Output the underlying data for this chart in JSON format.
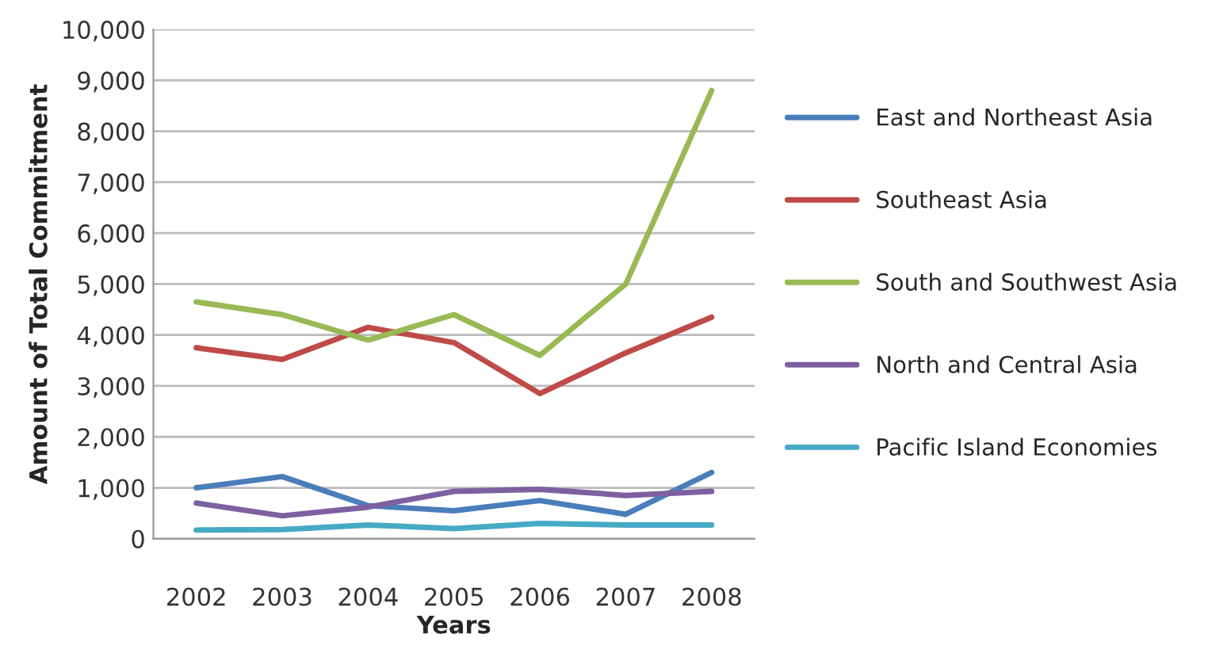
{
  "chart_data": {
    "type": "line",
    "xlabel": "Years",
    "ylabel": "Amount of Total Commitment",
    "categories": [
      "2002",
      "2003",
      "2004",
      "2005",
      "2006",
      "2007",
      "2008"
    ],
    "series": [
      {
        "name": "East and Northeast Asia",
        "color": "#4a7ebb",
        "values": [
          1000,
          1220,
          650,
          550,
          750,
          480,
          1300
        ]
      },
      {
        "name": "Southeast Asia",
        "color": "#be4b48",
        "values": [
          3750,
          3520,
          4150,
          3850,
          2850,
          3650,
          4350
        ]
      },
      {
        "name": "South and Southwest Asia",
        "color": "#98b954",
        "values": [
          4650,
          4400,
          3900,
          4400,
          3600,
          5000,
          8800
        ]
      },
      {
        "name": "North and Central Asia",
        "color": "#7d60a0",
        "values": [
          700,
          450,
          620,
          930,
          970,
          850,
          930
        ]
      },
      {
        "name": "Pacific Island Economies",
        "color": "#46aac5",
        "values": [
          170,
          180,
          270,
          200,
          300,
          270,
          270
        ]
      }
    ],
    "ylim": [
      0,
      10000
    ],
    "yticks": [
      {
        "value": 0,
        "label": "0"
      },
      {
        "value": 1000,
        "label": "1,000"
      },
      {
        "value": 2000,
        "label": "2,000"
      },
      {
        "value": 3000,
        "label": "3,000"
      },
      {
        "value": 4000,
        "label": "4,000"
      },
      {
        "value": 5000,
        "label": "5,000"
      },
      {
        "value": 6000,
        "label": "6,000"
      },
      {
        "value": 7000,
        "label": "7,000"
      },
      {
        "value": 8000,
        "label": "8,000"
      },
      {
        "value": 9000,
        "label": "9,000"
      },
      {
        "value": 10000,
        "label": "10,000"
      }
    ],
    "grid": "y",
    "legend": "right",
    "marker": "none",
    "line_style": "solid"
  }
}
